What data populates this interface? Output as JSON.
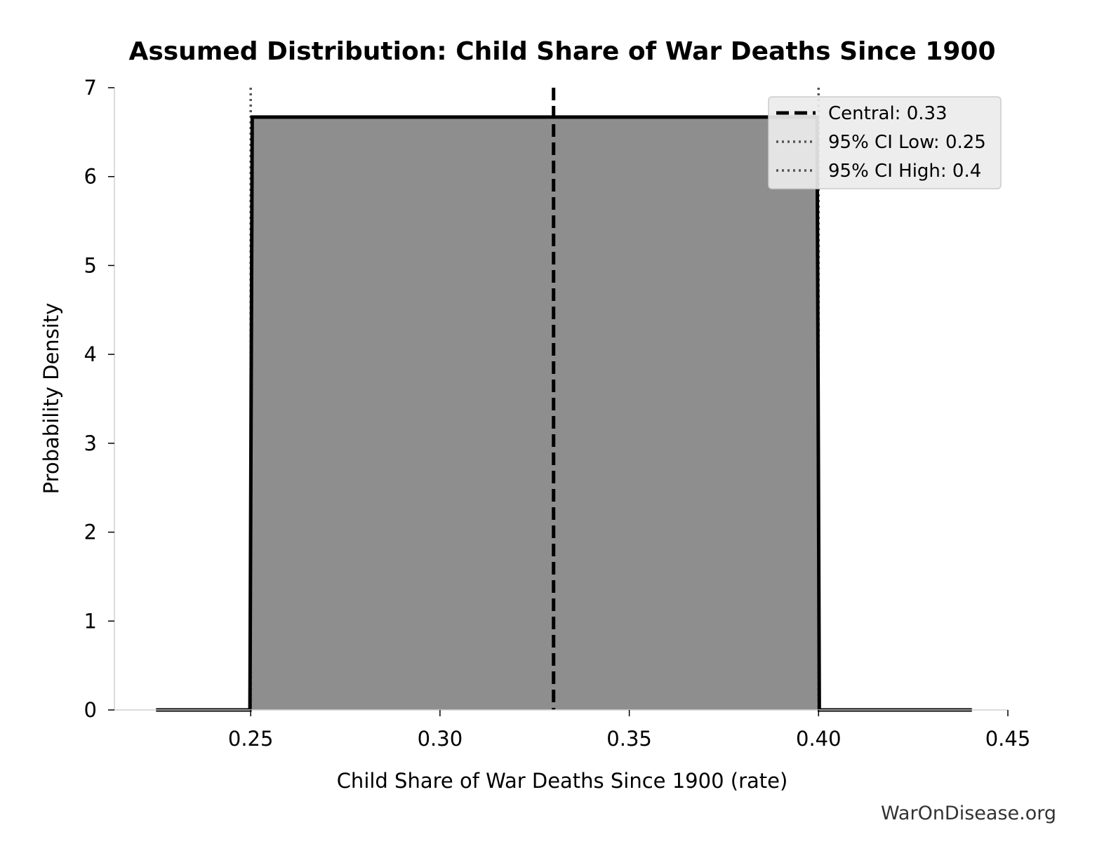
{
  "chart_data": {
    "type": "area",
    "title": "Assumed Distribution: Child Share of War Deaths Since 1900",
    "xlabel": "Child Share of War Deaths Since 1900 (rate)",
    "ylabel": "Probability Density",
    "xlim": [
      0.214,
      0.45
    ],
    "ylim": [
      0,
      7
    ],
    "x_ticks": [
      0.25,
      0.3,
      0.35,
      0.4,
      0.45
    ],
    "x_tick_labels": [
      "0.25",
      "0.30",
      "0.35",
      "0.40",
      "0.45"
    ],
    "y_ticks": [
      0,
      1,
      2,
      3,
      4,
      5,
      6,
      7
    ],
    "y_tick_labels": [
      "0",
      "1",
      "2",
      "3",
      "4",
      "5",
      "6",
      "7"
    ],
    "series": [
      {
        "x": [
          0.225,
          0.2498,
          0.2504,
          0.3996,
          0.4002,
          0.4405
        ],
        "y": [
          0,
          0,
          6.67,
          6.67,
          0,
          0
        ],
        "fill": "#8e8e8e",
        "line_color": "#000000"
      }
    ],
    "reference_lines": [
      {
        "label": "Central: 0.33",
        "x": 0.33,
        "style": "dashed",
        "color": "#000000"
      },
      {
        "label": "95% CI Low: 0.25",
        "x": 0.25,
        "style": "dotted",
        "color": "#555555"
      },
      {
        "label": "95% CI High: 0.4",
        "x": 0.4,
        "style": "dotted",
        "color": "#555555"
      }
    ],
    "legend_position": "top-right",
    "grid": false
  },
  "watermark": "WarOnDisease.org"
}
